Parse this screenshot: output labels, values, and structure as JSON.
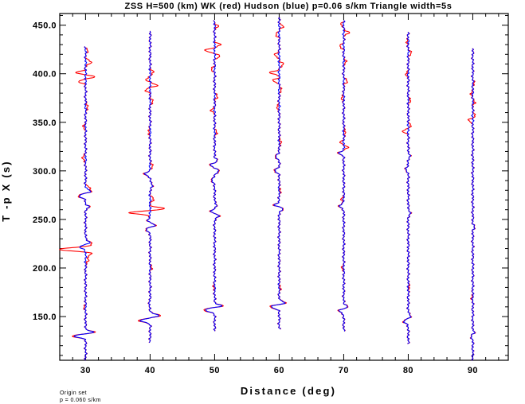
{
  "chart_data": {
    "type": "line",
    "title": "ZSS H=500 (km) WK (red) Hudson (blue) p=0.06 s/km Triangle width=5s",
    "xlabel": "Distance (deg)",
    "ylabel": "T -p X (s)",
    "xlim": [
      26,
      95.5
    ],
    "ylim": [
      105,
      462
    ],
    "x_ticks": [
      30,
      40,
      50,
      60,
      70,
      80,
      90
    ],
    "y_ticks": [
      150,
      200,
      250,
      300,
      350,
      400,
      450
    ],
    "x_tick_labels": [
      "30",
      "40",
      "50",
      "60",
      "70",
      "80",
      "90"
    ],
    "y_tick_labels": [
      "150.0",
      "200.0",
      "250.0",
      "300.0",
      "350.0",
      "400.0",
      "450.0"
    ],
    "series": [
      {
        "name": "WK (red)",
        "color": "#ff0000"
      },
      {
        "name": "Hudson (blue)",
        "color": "#0000ff"
      }
    ],
    "traces": [
      {
        "distance": 30,
        "t_start": 105,
        "t_end": 428,
        "wiggles": [
          {
            "t": 130,
            "amp": -2.2,
            "w": 2.0,
            "both": true
          },
          {
            "t": 134,
            "amp": 1.4,
            "w": 2.0,
            "both": true
          },
          {
            "t": 160,
            "amp": -0.3,
            "w": 2.0,
            "both": false
          },
          {
            "t": 208,
            "amp": 0.5,
            "w": 3.0,
            "both": false
          },
          {
            "t": 215,
            "amp": 1.0,
            "w": 2.5,
            "both": false
          },
          {
            "t": 219,
            "amp": -4.0,
            "w": 2.0,
            "both": false
          },
          {
            "t": 223,
            "amp": 1.4,
            "w": 2.0,
            "both": false
          },
          {
            "t": 222,
            "amp": -1.2,
            "w": 2.5,
            "both": true
          },
          {
            "t": 226,
            "amp": 0.9,
            "w": 2.5,
            "both": true
          },
          {
            "t": 263,
            "amp": 0.6,
            "w": 2.0,
            "both": true
          },
          {
            "t": 274,
            "amp": -1.2,
            "w": 2.5,
            "both": true
          },
          {
            "t": 279,
            "amp": 1.0,
            "w": 2.0,
            "both": true
          },
          {
            "t": 283,
            "amp": 0.6,
            "w": 2.0,
            "both": false
          },
          {
            "t": 313,
            "amp": -0.5,
            "w": 3.0,
            "both": false
          },
          {
            "t": 345,
            "amp": -0.3,
            "w": 3.0,
            "both": false
          },
          {
            "t": 366,
            "amp": 0.4,
            "w": 3.0,
            "both": false
          },
          {
            "t": 392,
            "amp": -1.2,
            "w": 2.0,
            "both": false
          },
          {
            "t": 397,
            "amp": 1.5,
            "w": 2.0,
            "both": false
          },
          {
            "t": 401,
            "amp": -1.6,
            "w": 2.0,
            "both": false
          },
          {
            "t": 412,
            "amp": 0.8,
            "w": 3.0,
            "both": false
          },
          {
            "t": 424,
            "amp": 0.4,
            "w": 2.0,
            "both": false
          }
        ]
      },
      {
        "distance": 40,
        "t_start": 123,
        "t_end": 444,
        "wiggles": [
          {
            "t": 146,
            "amp": -1.7,
            "w": 2.5,
            "both": true
          },
          {
            "t": 151,
            "amp": 1.5,
            "w": 2.5,
            "both": true
          },
          {
            "t": 162,
            "amp": -0.2,
            "w": 3.0,
            "both": true
          },
          {
            "t": 200,
            "amp": 0.2,
            "w": 3.0,
            "both": false
          },
          {
            "t": 240,
            "amp": -0.9,
            "w": 2.5,
            "both": true
          },
          {
            "t": 244,
            "amp": 1.0,
            "w": 2.5,
            "both": true
          },
          {
            "t": 249,
            "amp": -0.5,
            "w": 2.5,
            "both": true
          },
          {
            "t": 257,
            "amp": -3.2,
            "w": 2.0,
            "both": false
          },
          {
            "t": 261,
            "amp": 2.2,
            "w": 2.0,
            "both": false
          },
          {
            "t": 271,
            "amp": 0.5,
            "w": 3.0,
            "both": false
          },
          {
            "t": 285,
            "amp": 0.5,
            "w": 2.5,
            "both": true
          },
          {
            "t": 297,
            "amp": -0.9,
            "w": 2.5,
            "both": true
          },
          {
            "t": 305,
            "amp": 0.5,
            "w": 2.5,
            "both": false
          },
          {
            "t": 340,
            "amp": -0.3,
            "w": 3.0,
            "both": false
          },
          {
            "t": 372,
            "amp": 0.4,
            "w": 3.0,
            "both": false
          },
          {
            "t": 383,
            "amp": -0.7,
            "w": 2.5,
            "both": false
          },
          {
            "t": 388,
            "amp": 1.1,
            "w": 2.0,
            "both": false
          },
          {
            "t": 394,
            "amp": -0.6,
            "w": 2.0,
            "both": false
          },
          {
            "t": 402,
            "amp": 0.5,
            "w": 2.5,
            "both": false
          }
        ]
      },
      {
        "distance": 50,
        "t_start": 135,
        "t_end": 455,
        "wiggles": [
          {
            "t": 157,
            "amp": -1.8,
            "w": 2.5,
            "both": true
          },
          {
            "t": 161,
            "amp": 1.4,
            "w": 2.0,
            "both": true
          },
          {
            "t": 180,
            "amp": -0.2,
            "w": 3.0,
            "both": false
          },
          {
            "t": 258,
            "amp": -0.8,
            "w": 2.5,
            "both": true
          },
          {
            "t": 254,
            "amp": 0.9,
            "w": 2.5,
            "both": true
          },
          {
            "t": 264,
            "amp": 0.4,
            "w": 2.5,
            "both": true
          },
          {
            "t": 290,
            "amp": -0.6,
            "w": 2.5,
            "both": true
          },
          {
            "t": 300,
            "amp": 0.7,
            "w": 2.5,
            "both": true
          },
          {
            "t": 306,
            "amp": -0.8,
            "w": 2.0,
            "both": true
          },
          {
            "t": 311,
            "amp": 0.5,
            "w": 2.0,
            "both": true
          },
          {
            "t": 340,
            "amp": 0.3,
            "w": 3.0,
            "both": false
          },
          {
            "t": 362,
            "amp": -0.5,
            "w": 2.5,
            "both": false
          },
          {
            "t": 376,
            "amp": 0.4,
            "w": 3.0,
            "both": false
          },
          {
            "t": 405,
            "amp": -0.5,
            "w": 2.5,
            "both": false
          },
          {
            "t": 418,
            "amp": 0.8,
            "w": 2.0,
            "both": false
          },
          {
            "t": 424,
            "amp": -1.5,
            "w": 2.0,
            "both": false
          },
          {
            "t": 430,
            "amp": 0.9,
            "w": 2.0,
            "both": false
          },
          {
            "t": 449,
            "amp": 0.5,
            "w": 2.0,
            "both": false
          }
        ]
      },
      {
        "distance": 60,
        "t_start": 137,
        "t_end": 458,
        "wiggles": [
          {
            "t": 160,
            "amp": -1.5,
            "w": 2.5,
            "both": true
          },
          {
            "t": 164,
            "amp": 1.2,
            "w": 2.0,
            "both": true
          },
          {
            "t": 180,
            "amp": 0.2,
            "w": 3.0,
            "both": false
          },
          {
            "t": 261,
            "amp": 0.8,
            "w": 2.0,
            "both": true
          },
          {
            "t": 265,
            "amp": -0.9,
            "w": 2.0,
            "both": true
          },
          {
            "t": 280,
            "amp": 0.2,
            "w": 3.0,
            "both": false
          },
          {
            "t": 300,
            "amp": -0.8,
            "w": 2.5,
            "both": true
          },
          {
            "t": 315,
            "amp": -0.7,
            "w": 2.5,
            "both": true
          },
          {
            "t": 330,
            "amp": 0.3,
            "w": 3.0,
            "both": false
          },
          {
            "t": 366,
            "amp": -0.4,
            "w": 2.5,
            "both": false
          },
          {
            "t": 383,
            "amp": 0.4,
            "w": 2.5,
            "both": false
          },
          {
            "t": 393,
            "amp": -1.0,
            "w": 2.0,
            "both": false
          },
          {
            "t": 401,
            "amp": -1.4,
            "w": 2.0,
            "both": false
          },
          {
            "t": 410,
            "amp": 0.7,
            "w": 2.5,
            "both": false
          },
          {
            "t": 419,
            "amp": -0.7,
            "w": 2.5,
            "both": false
          },
          {
            "t": 440,
            "amp": -0.5,
            "w": 2.5,
            "both": false
          },
          {
            "t": 449,
            "amp": 0.7,
            "w": 2.0,
            "both": false
          }
        ]
      },
      {
        "distance": 70,
        "t_start": 135,
        "t_end": 455,
        "wiggles": [
          {
            "t": 156,
            "amp": -0.9,
            "w": 2.5,
            "both": true
          },
          {
            "t": 160,
            "amp": 0.9,
            "w": 2.0,
            "both": true
          },
          {
            "t": 200,
            "amp": -0.2,
            "w": 3.0,
            "both": false
          },
          {
            "t": 264,
            "amp": -0.8,
            "w": 2.5,
            "both": true
          },
          {
            "t": 271,
            "amp": -0.3,
            "w": 2.5,
            "both": false
          },
          {
            "t": 318,
            "amp": -0.9,
            "w": 2.0,
            "both": true
          },
          {
            "t": 324,
            "amp": 0.6,
            "w": 2.0,
            "both": false
          },
          {
            "t": 329,
            "amp": -0.5,
            "w": 2.0,
            "both": false
          },
          {
            "t": 340,
            "amp": 0.3,
            "w": 3.0,
            "both": false
          },
          {
            "t": 375,
            "amp": -0.4,
            "w": 2.5,
            "both": false
          },
          {
            "t": 392,
            "amp": 0.6,
            "w": 2.5,
            "both": false
          },
          {
            "t": 412,
            "amp": 0.4,
            "w": 2.5,
            "both": false
          },
          {
            "t": 428,
            "amp": -0.6,
            "w": 2.5,
            "both": false
          },
          {
            "t": 442,
            "amp": 0.9,
            "w": 2.0,
            "both": false
          },
          {
            "t": 451,
            "amp": -0.4,
            "w": 2.0,
            "both": false
          }
        ]
      },
      {
        "distance": 80,
        "t_start": 122,
        "t_end": 443,
        "wiggles": [
          {
            "t": 145,
            "amp": -0.9,
            "w": 2.5,
            "both": true
          },
          {
            "t": 150,
            "amp": 0.5,
            "w": 2.5,
            "both": true
          },
          {
            "t": 180,
            "amp": 0.2,
            "w": 3.0,
            "both": false
          },
          {
            "t": 257,
            "amp": 0.4,
            "w": 2.5,
            "both": true
          },
          {
            "t": 302,
            "amp": -0.5,
            "w": 2.5,
            "both": true
          },
          {
            "t": 316,
            "amp": 0.3,
            "w": 2.5,
            "both": true
          },
          {
            "t": 341,
            "amp": -0.9,
            "w": 2.0,
            "both": false
          },
          {
            "t": 347,
            "amp": 0.5,
            "w": 2.0,
            "both": false
          },
          {
            "t": 372,
            "amp": 0.3,
            "w": 3.0,
            "both": false
          },
          {
            "t": 400,
            "amp": -0.3,
            "w": 3.0,
            "both": false
          },
          {
            "t": 421,
            "amp": 0.5,
            "w": 2.5,
            "both": false
          },
          {
            "t": 433,
            "amp": -0.3,
            "w": 2.5,
            "both": false
          }
        ]
      },
      {
        "distance": 90,
        "t_start": 105,
        "t_end": 426,
        "wiggles": [
          {
            "t": 130,
            "amp": -0.3,
            "w": 2.5,
            "both": true
          },
          {
            "t": 134,
            "amp": 0.3,
            "w": 2.0,
            "both": true
          },
          {
            "t": 170,
            "amp": -0.15,
            "w": 3.0,
            "both": false
          },
          {
            "t": 242,
            "amp": 0.25,
            "w": 2.5,
            "both": true
          },
          {
            "t": 352,
            "amp": -0.8,
            "w": 2.0,
            "both": false
          },
          {
            "t": 357,
            "amp": 0.5,
            "w": 2.0,
            "both": false
          },
          {
            "t": 370,
            "amp": 0.3,
            "w": 2.5,
            "both": false
          },
          {
            "t": 380,
            "amp": -0.3,
            "w": 2.5,
            "both": false
          },
          {
            "t": 390,
            "amp": 0.2,
            "w": 2.5,
            "both": false
          }
        ]
      }
    ]
  },
  "footer": {
    "line1": "Origin set",
    "line2": "p = 0.060 s/km"
  }
}
